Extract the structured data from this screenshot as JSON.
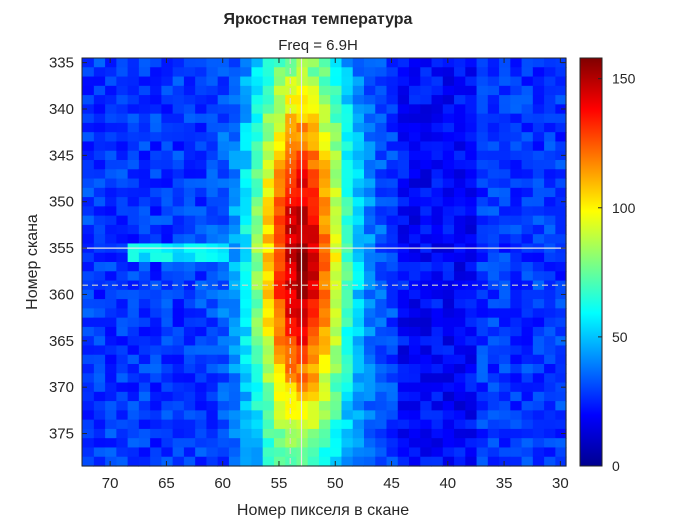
{
  "chart_data": {
    "type": "heatmap",
    "title": "Яркостная температура",
    "subtitle": "Freq = 6.9H",
    "xlabel": "Номер пикселя в скане",
    "ylabel": "Номер скана",
    "x_range": [
      72.5,
      29.5
    ],
    "y_range": [
      334.5,
      378.5
    ],
    "x_reversed": true,
    "y_reversed": true,
    "x_ticks": [
      70,
      65,
      60,
      55,
      50,
      45,
      40,
      35,
      30
    ],
    "y_ticks": [
      335,
      340,
      345,
      350,
      355,
      360,
      365,
      370,
      375
    ],
    "colormap": "jet",
    "color_range": [
      0,
      158
    ],
    "colorbar": {
      "ticks": [
        0,
        50,
        100,
        150
      ],
      "placement": "right"
    },
    "field_model": {
      "description_hidden": true,
      "background": 28,
      "peak": 152,
      "center_x": 53.2,
      "center_y": 356,
      "sigma_x": 2.9,
      "sigma_y": 12.5,
      "left_band_row": 355,
      "left_band_value": 58
    },
    "markers": {
      "crosshair_solid": {
        "x": 53,
        "y": 355,
        "color": "#e8e8e8"
      },
      "crosshair_dashed": {
        "x": 54,
        "y": 359,
        "color": "#d8d8c8"
      }
    },
    "grid": false,
    "legend": "none"
  }
}
